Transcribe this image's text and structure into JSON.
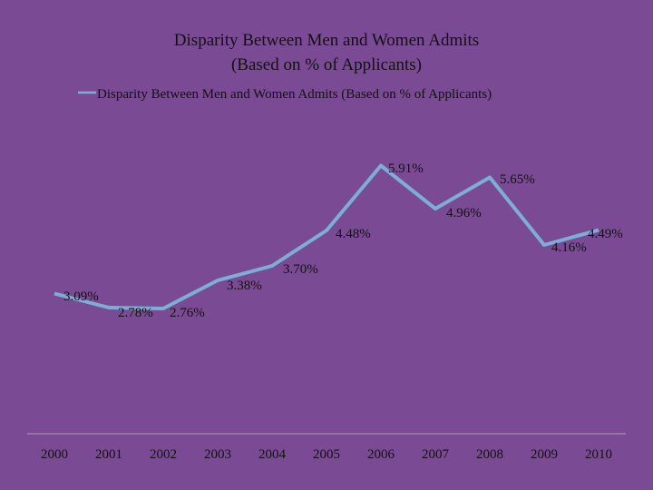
{
  "chart_data": {
    "type": "line",
    "title_lines": [
      "Disparity Between Men and Women Admits",
      "(Based on % of Applicants)"
    ],
    "legend": "Disparity Between Men and Women Admits (Based on % of Applicants)",
    "categories": [
      "2000",
      "2001",
      "2002",
      "2003",
      "2004",
      "2005",
      "2006",
      "2007",
      "2008",
      "2009",
      "2010"
    ],
    "values": [
      3.09,
      2.78,
      2.76,
      3.38,
      3.7,
      4.48,
      5.91,
      4.96,
      5.65,
      4.16,
      4.49
    ],
    "labels": [
      "3.09%",
      "2.78%",
      "2.76%",
      "3.38%",
      "3.70%",
      "4.48%",
      "5.91%",
      "4.96%",
      "5.65%",
      "4.16%",
      "4.49%"
    ],
    "xlabel": "",
    "ylabel": "",
    "ylim": [
      0,
      7
    ],
    "grid": false,
    "legend_position": "top",
    "colors": {
      "line": "#7bafd4",
      "background": "#7b4a94",
      "axis": "#9a86a8"
    }
  }
}
